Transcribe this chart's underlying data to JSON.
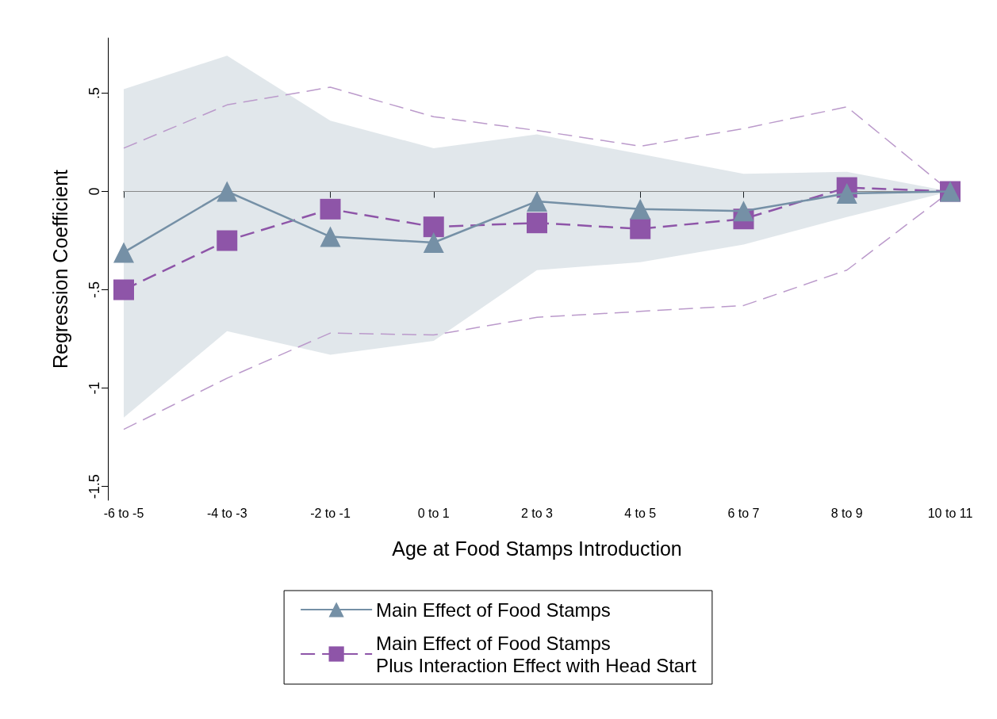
{
  "chart_data": {
    "type": "line",
    "xlabel": "Age at Food Stamps Introduction",
    "ylabel": "Regression Coefficient",
    "categories": [
      "-6 to -5",
      "-4 to -3",
      "-2 to -1",
      "0 to 1",
      "2 to 3",
      "4 to 5",
      "6 to 7",
      "8 to 9",
      "10 to 11"
    ],
    "series": [
      {
        "name": "Main Effect of Food Stamps",
        "color": "#7590a6",
        "marker": "triangle",
        "line_style": "solid",
        "values": [
          -0.31,
          0.0,
          -0.23,
          -0.26,
          -0.05,
          -0.09,
          -0.1,
          -0.01,
          0
        ],
        "lower": [
          -1.15,
          -0.71,
          -0.83,
          -0.76,
          -0.4,
          -0.36,
          -0.27,
          -0.13,
          0
        ],
        "upper": [
          0.52,
          0.69,
          0.36,
          0.22,
          0.29,
          0.19,
          0.09,
          0.1,
          0
        ]
      },
      {
        "name": "Main Effect of Food Stamps\nPlus Interaction Effect with Head Start",
        "color": "#8e55a8",
        "marker": "square",
        "line_style": "dashed",
        "values": [
          -0.5,
          -0.25,
          -0.09,
          -0.18,
          -0.16,
          -0.19,
          -0.14,
          0.02,
          0
        ]
      },
      {
        "color": "#bb9acb",
        "marker": "none",
        "line_style": "dashed",
        "values": [
          -1.21,
          -0.95,
          -0.72,
          -0.73,
          -0.64,
          -0.61,
          -0.58,
          -0.4,
          0
        ]
      },
      {
        "color": "#bb9acb",
        "marker": "none",
        "line_style": "dashed",
        "values": [
          0.22,
          0.44,
          0.53,
          0.38,
          0.31,
          0.23,
          0.32,
          0.43,
          0
        ]
      }
    ],
    "ylim": [
      -1.57,
      0.78
    ],
    "yticks": [
      {
        "value": -1.5,
        "label": "-1.5"
      },
      {
        "value": -1,
        "label": "-1"
      },
      {
        "value": -0.5,
        "label": "-.5"
      },
      {
        "value": 0,
        "label": "0"
      },
      {
        "value": 0.5,
        "label": ".5"
      }
    ],
    "ref_lines": [
      {
        "axis": "y",
        "value": 0,
        "color": "#888888"
      }
    ],
    "grid": false,
    "legend": "bottom"
  }
}
